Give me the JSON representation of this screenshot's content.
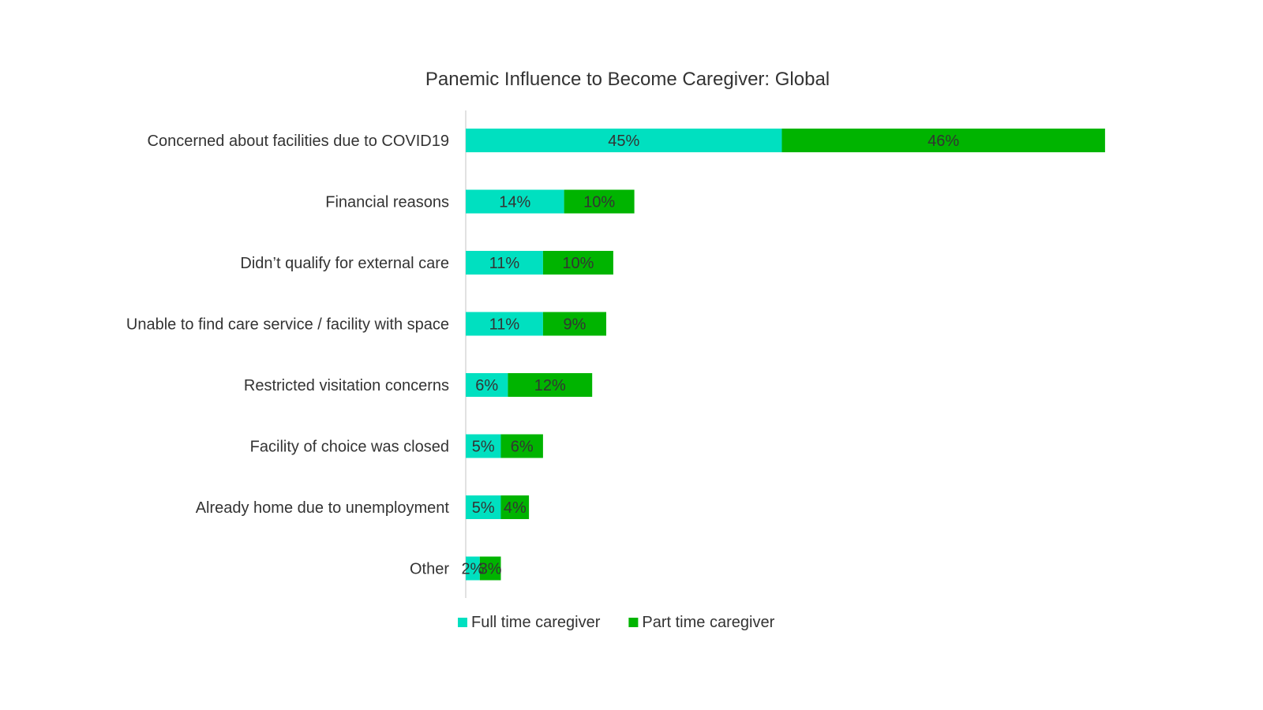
{
  "chart_data": {
    "type": "bar",
    "orientation": "horizontal",
    "stacked": true,
    "title": "Panemic Influence to Become Caregiver: Global",
    "categories": [
      "Concerned about facilities due to COVID19",
      "Financial reasons",
      "Didn’t qualify for external care",
      "Unable to find care service / facility with space",
      "Restricted visitation concerns",
      "Facility of choice was closed",
      "Already home due to unemployment",
      "Other"
    ],
    "series": [
      {
        "name": "Full time caregiver",
        "color": "#00E0C0",
        "values": [
          45,
          14,
          11,
          11,
          6,
          5,
          5,
          2
        ],
        "labels": [
          "45%",
          "14%",
          "11%",
          "11%",
          "6%",
          "5%",
          "5%",
          "2%"
        ]
      },
      {
        "name": "Part time caregiver",
        "color": "#00B400",
        "values": [
          46,
          10,
          10,
          9,
          12,
          6,
          4,
          3
        ],
        "labels": [
          "46%",
          "10%",
          "10%",
          "9%",
          "12%",
          "6%",
          "4%",
          "3%"
        ]
      }
    ],
    "xlim": [
      0,
      100
    ],
    "grid": false,
    "legend_position": "bottom"
  }
}
